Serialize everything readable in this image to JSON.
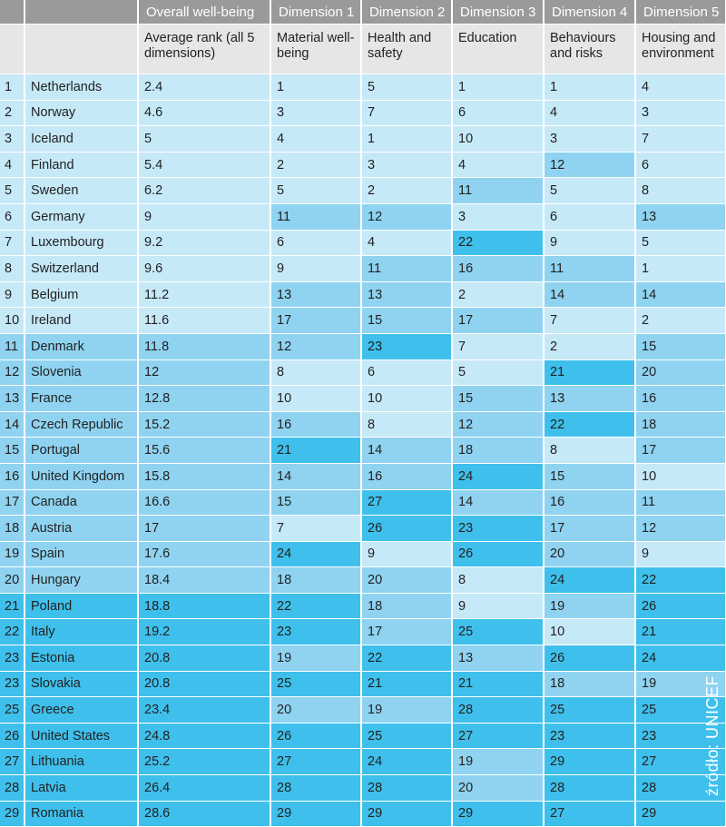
{
  "chart_data": {
    "type": "table",
    "header_groups": [
      "Overall well-being",
      "Dimension 1",
      "Dimension 2",
      "Dimension 3",
      "Dimension 4",
      "Dimension 5"
    ],
    "subheaders": [
      "Average rank (all 5 dimensions)",
      "Material well-being",
      "Health and safety",
      "Education",
      "Behaviours and risks",
      "Housing and environment"
    ],
    "rows": [
      {
        "rank": "1",
        "country": "Netherlands",
        "avg": "2.4",
        "d": [
          "1",
          "5",
          "1",
          "1",
          "4"
        ]
      },
      {
        "rank": "2",
        "country": "Norway",
        "avg": "4.6",
        "d": [
          "3",
          "7",
          "6",
          "4",
          "3"
        ]
      },
      {
        "rank": "3",
        "country": "Iceland",
        "avg": "5",
        "d": [
          "4",
          "1",
          "10",
          "3",
          "7"
        ]
      },
      {
        "rank": "4",
        "country": "Finland",
        "avg": "5.4",
        "d": [
          "2",
          "3",
          "4",
          "12",
          "6"
        ]
      },
      {
        "rank": "5",
        "country": "Sweden",
        "avg": "6.2",
        "d": [
          "5",
          "2",
          "11",
          "5",
          "8"
        ]
      },
      {
        "rank": "6",
        "country": "Germany",
        "avg": "9",
        "d": [
          "11",
          "12",
          "3",
          "6",
          "13"
        ]
      },
      {
        "rank": "7",
        "country": "Luxembourg",
        "avg": "9.2",
        "d": [
          "6",
          "4",
          "22",
          "9",
          "5"
        ]
      },
      {
        "rank": "8",
        "country": "Switzerland",
        "avg": "9.6",
        "d": [
          "9",
          "11",
          "16",
          "11",
          "1"
        ]
      },
      {
        "rank": "9",
        "country": "Belgium",
        "avg": "11.2",
        "d": [
          "13",
          "13",
          "2",
          "14",
          "14"
        ]
      },
      {
        "rank": "10",
        "country": "Ireland",
        "avg": "11.6",
        "d": [
          "17",
          "15",
          "17",
          "7",
          "2"
        ]
      },
      {
        "rank": "11",
        "country": "Denmark",
        "avg": "11.8",
        "d": [
          "12",
          "23",
          "7",
          "2",
          "15"
        ]
      },
      {
        "rank": "12",
        "country": "Slovenia",
        "avg": "12",
        "d": [
          "8",
          "6",
          "5",
          "21",
          "20"
        ]
      },
      {
        "rank": "13",
        "country": "France",
        "avg": "12.8",
        "d": [
          "10",
          "10",
          "15",
          "13",
          "16"
        ]
      },
      {
        "rank": "14",
        "country": "Czech Republic",
        "avg": "15.2",
        "d": [
          "16",
          "8",
          "12",
          "22",
          "18"
        ]
      },
      {
        "rank": "15",
        "country": "Portugal",
        "avg": "15.6",
        "d": [
          "21",
          "14",
          "18",
          "8",
          "17"
        ]
      },
      {
        "rank": "16",
        "country": "United Kingdom",
        "avg": "15.8",
        "d": [
          "14",
          "16",
          "24",
          "15",
          "10"
        ]
      },
      {
        "rank": "17",
        "country": "Canada",
        "avg": "16.6",
        "d": [
          "15",
          "27",
          "14",
          "16",
          "11"
        ]
      },
      {
        "rank": "18",
        "country": "Austria",
        "avg": "17",
        "d": [
          "7",
          "26",
          "23",
          "17",
          "12"
        ]
      },
      {
        "rank": "19",
        "country": "Spain",
        "avg": "17.6",
        "d": [
          "24",
          "9",
          "26",
          "20",
          "9"
        ]
      },
      {
        "rank": "20",
        "country": "Hungary",
        "avg": "18.4",
        "d": [
          "18",
          "20",
          "8",
          "24",
          "22"
        ]
      },
      {
        "rank": "21",
        "country": "Poland",
        "avg": "18.8",
        "d": [
          "22",
          "18",
          "9",
          "19",
          "26"
        ]
      },
      {
        "rank": "22",
        "country": "Italy",
        "avg": "19.2",
        "d": [
          "23",
          "17",
          "25",
          "10",
          "21"
        ]
      },
      {
        "rank": "23",
        "country": "Estonia",
        "avg": "20.8",
        "d": [
          "19",
          "22",
          "13",
          "26",
          "24"
        ]
      },
      {
        "rank": "23",
        "country": "Slovakia",
        "avg": "20.8",
        "d": [
          "25",
          "21",
          "21",
          "18",
          "19"
        ]
      },
      {
        "rank": "25",
        "country": "Greece",
        "avg": "23.4",
        "d": [
          "20",
          "19",
          "28",
          "25",
          "25"
        ]
      },
      {
        "rank": "26",
        "country": "United States",
        "avg": "24.8",
        "d": [
          "26",
          "25",
          "27",
          "23",
          "23"
        ]
      },
      {
        "rank": "27",
        "country": "Lithuania",
        "avg": "25.2",
        "d": [
          "27",
          "24",
          "19",
          "29",
          "27"
        ]
      },
      {
        "rank": "28",
        "country": "Latvia",
        "avg": "26.4",
        "d": [
          "28",
          "28",
          "20",
          "28",
          "28"
        ]
      },
      {
        "rank": "29",
        "country": "Romania",
        "avg": "28.6",
        "d": [
          "29",
          "29",
          "29",
          "27",
          "29"
        ]
      }
    ],
    "colors": {
      "top_third": "#c6e9f8",
      "middle_third": "#8fd3f1",
      "bottom_third": "#3fc0ec",
      "header": "#9a9a9a",
      "subheader": "#e6e6e6"
    }
  },
  "source": "źródło: UNICEF"
}
